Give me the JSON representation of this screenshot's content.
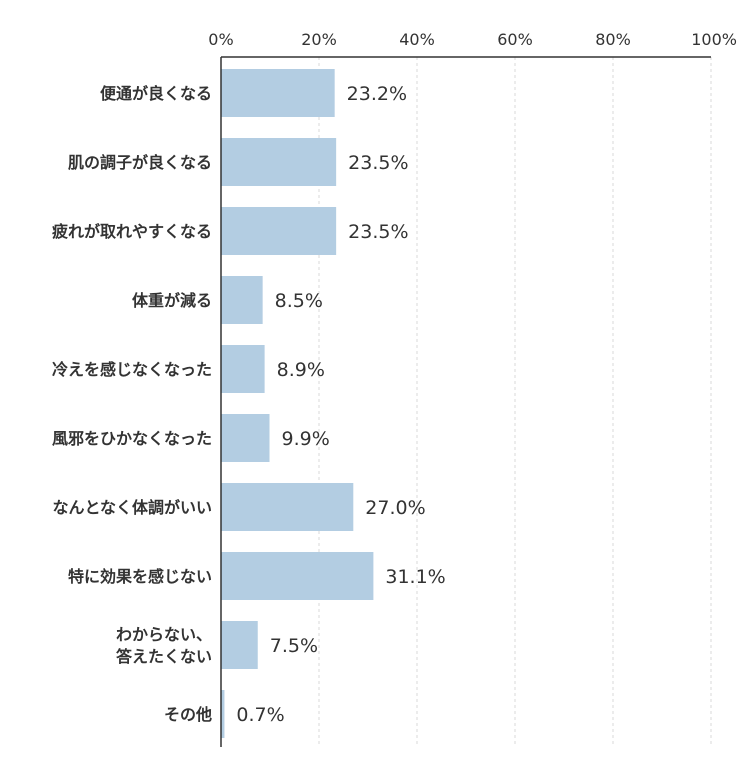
{
  "chart_data": {
    "type": "bar",
    "orientation": "horizontal",
    "categories": [
      [
        "便通が良くなる"
      ],
      [
        "肌の調子が良くなる"
      ],
      [
        "疲れが取れやすくなる"
      ],
      [
        "体重が減る"
      ],
      [
        "冷えを感じなくなった"
      ],
      [
        "風邪をひかなくなった"
      ],
      [
        "なんとなく体調がいい"
      ],
      [
        "特に効果を感じない"
      ],
      [
        "わからない、",
        "答えたくない"
      ],
      [
        "その他"
      ]
    ],
    "values": [
      23.2,
      23.5,
      23.5,
      8.5,
      8.9,
      9.9,
      27.0,
      31.1,
      7.5,
      0.7
    ],
    "value_labels": [
      "23.2%",
      "23.5%",
      "23.5%",
      "8.5%",
      "8.9%",
      "9.9%",
      "27.0%",
      "31.1%",
      "7.5%",
      "0.7%"
    ],
    "x_ticks": [
      "0%",
      "20%",
      "40%",
      "60%",
      "80%",
      "100%"
    ],
    "xlim": [
      0,
      100
    ],
    "x_axis_position": "top",
    "grid": true,
    "bar_color": "#b3cde2"
  }
}
